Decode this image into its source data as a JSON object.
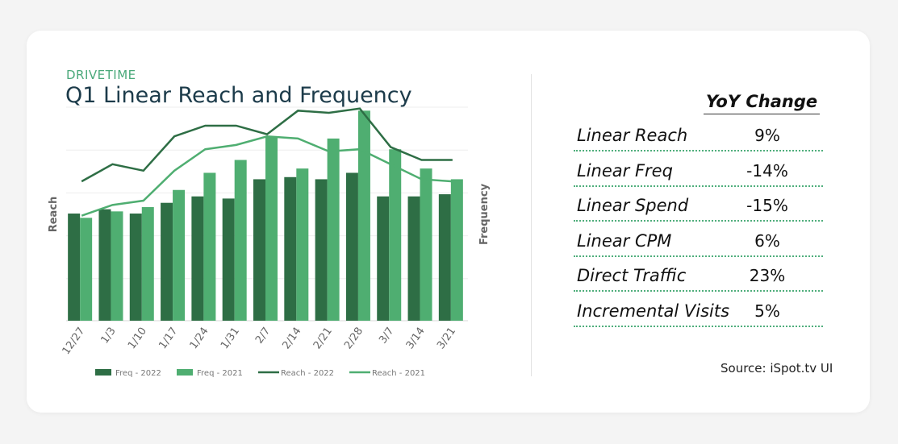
{
  "header": {
    "eyebrow": "DRIVETIME",
    "title": "Q1 Linear Reach and Frequency"
  },
  "yoy": {
    "header": "YoY Change",
    "rows": [
      {
        "metric": "Linear Reach",
        "value": "9%"
      },
      {
        "metric": "Linear Freq",
        "value": "-14%"
      },
      {
        "metric": "Linear Spend",
        "value": "-15%"
      },
      {
        "metric": "Linear CPM",
        "value": "6%"
      },
      {
        "metric": "Direct Traffic",
        "value": "23%"
      },
      {
        "metric": "Incremental Visits",
        "value": "5%"
      }
    ]
  },
  "source": "Source: iSpot.tv UI",
  "colors": {
    "dark_green": "#2e6e45",
    "light_green": "#4fae71",
    "accent_text": "#4aa97a",
    "title_text": "#1c3b4a"
  },
  "chart_data": {
    "type": "bar",
    "categories": [
      "12/27",
      "1/3",
      "1/10",
      "1/17",
      "1/24",
      "1/31",
      "2/7",
      "2/14",
      "2/21",
      "2/28",
      "3/7",
      "3/14",
      "3/21"
    ],
    "ylabel": "Reach",
    "y2label": "Frequency",
    "ylim": [
      0,
      100
    ],
    "grid": true,
    "legend": "bottom",
    "bar_series": [
      {
        "name": "Freq - 2022",
        "color": "#2e6e45",
        "values": [
          50,
          52,
          50,
          55,
          58,
          57,
          66,
          67,
          66,
          69,
          58,
          58,
          59
        ]
      },
      {
        "name": "Freq - 2021",
        "color": "#4fae71",
        "values": [
          48,
          51,
          53,
          61,
          69,
          75,
          86,
          71,
          85,
          98,
          80,
          71,
          66
        ]
      }
    ],
    "line_series": [
      {
        "name": "Reach - 2022",
        "color": "#2e6e45",
        "values": [
          65,
          73,
          70,
          86,
          91,
          91,
          87,
          98,
          97,
          99,
          81,
          75,
          75
        ]
      },
      {
        "name": "Reach - 2021",
        "color": "#4fae71",
        "values": [
          49,
          54,
          56,
          70,
          80,
          82,
          86,
          85,
          79,
          80,
          73,
          66,
          65
        ]
      }
    ]
  }
}
